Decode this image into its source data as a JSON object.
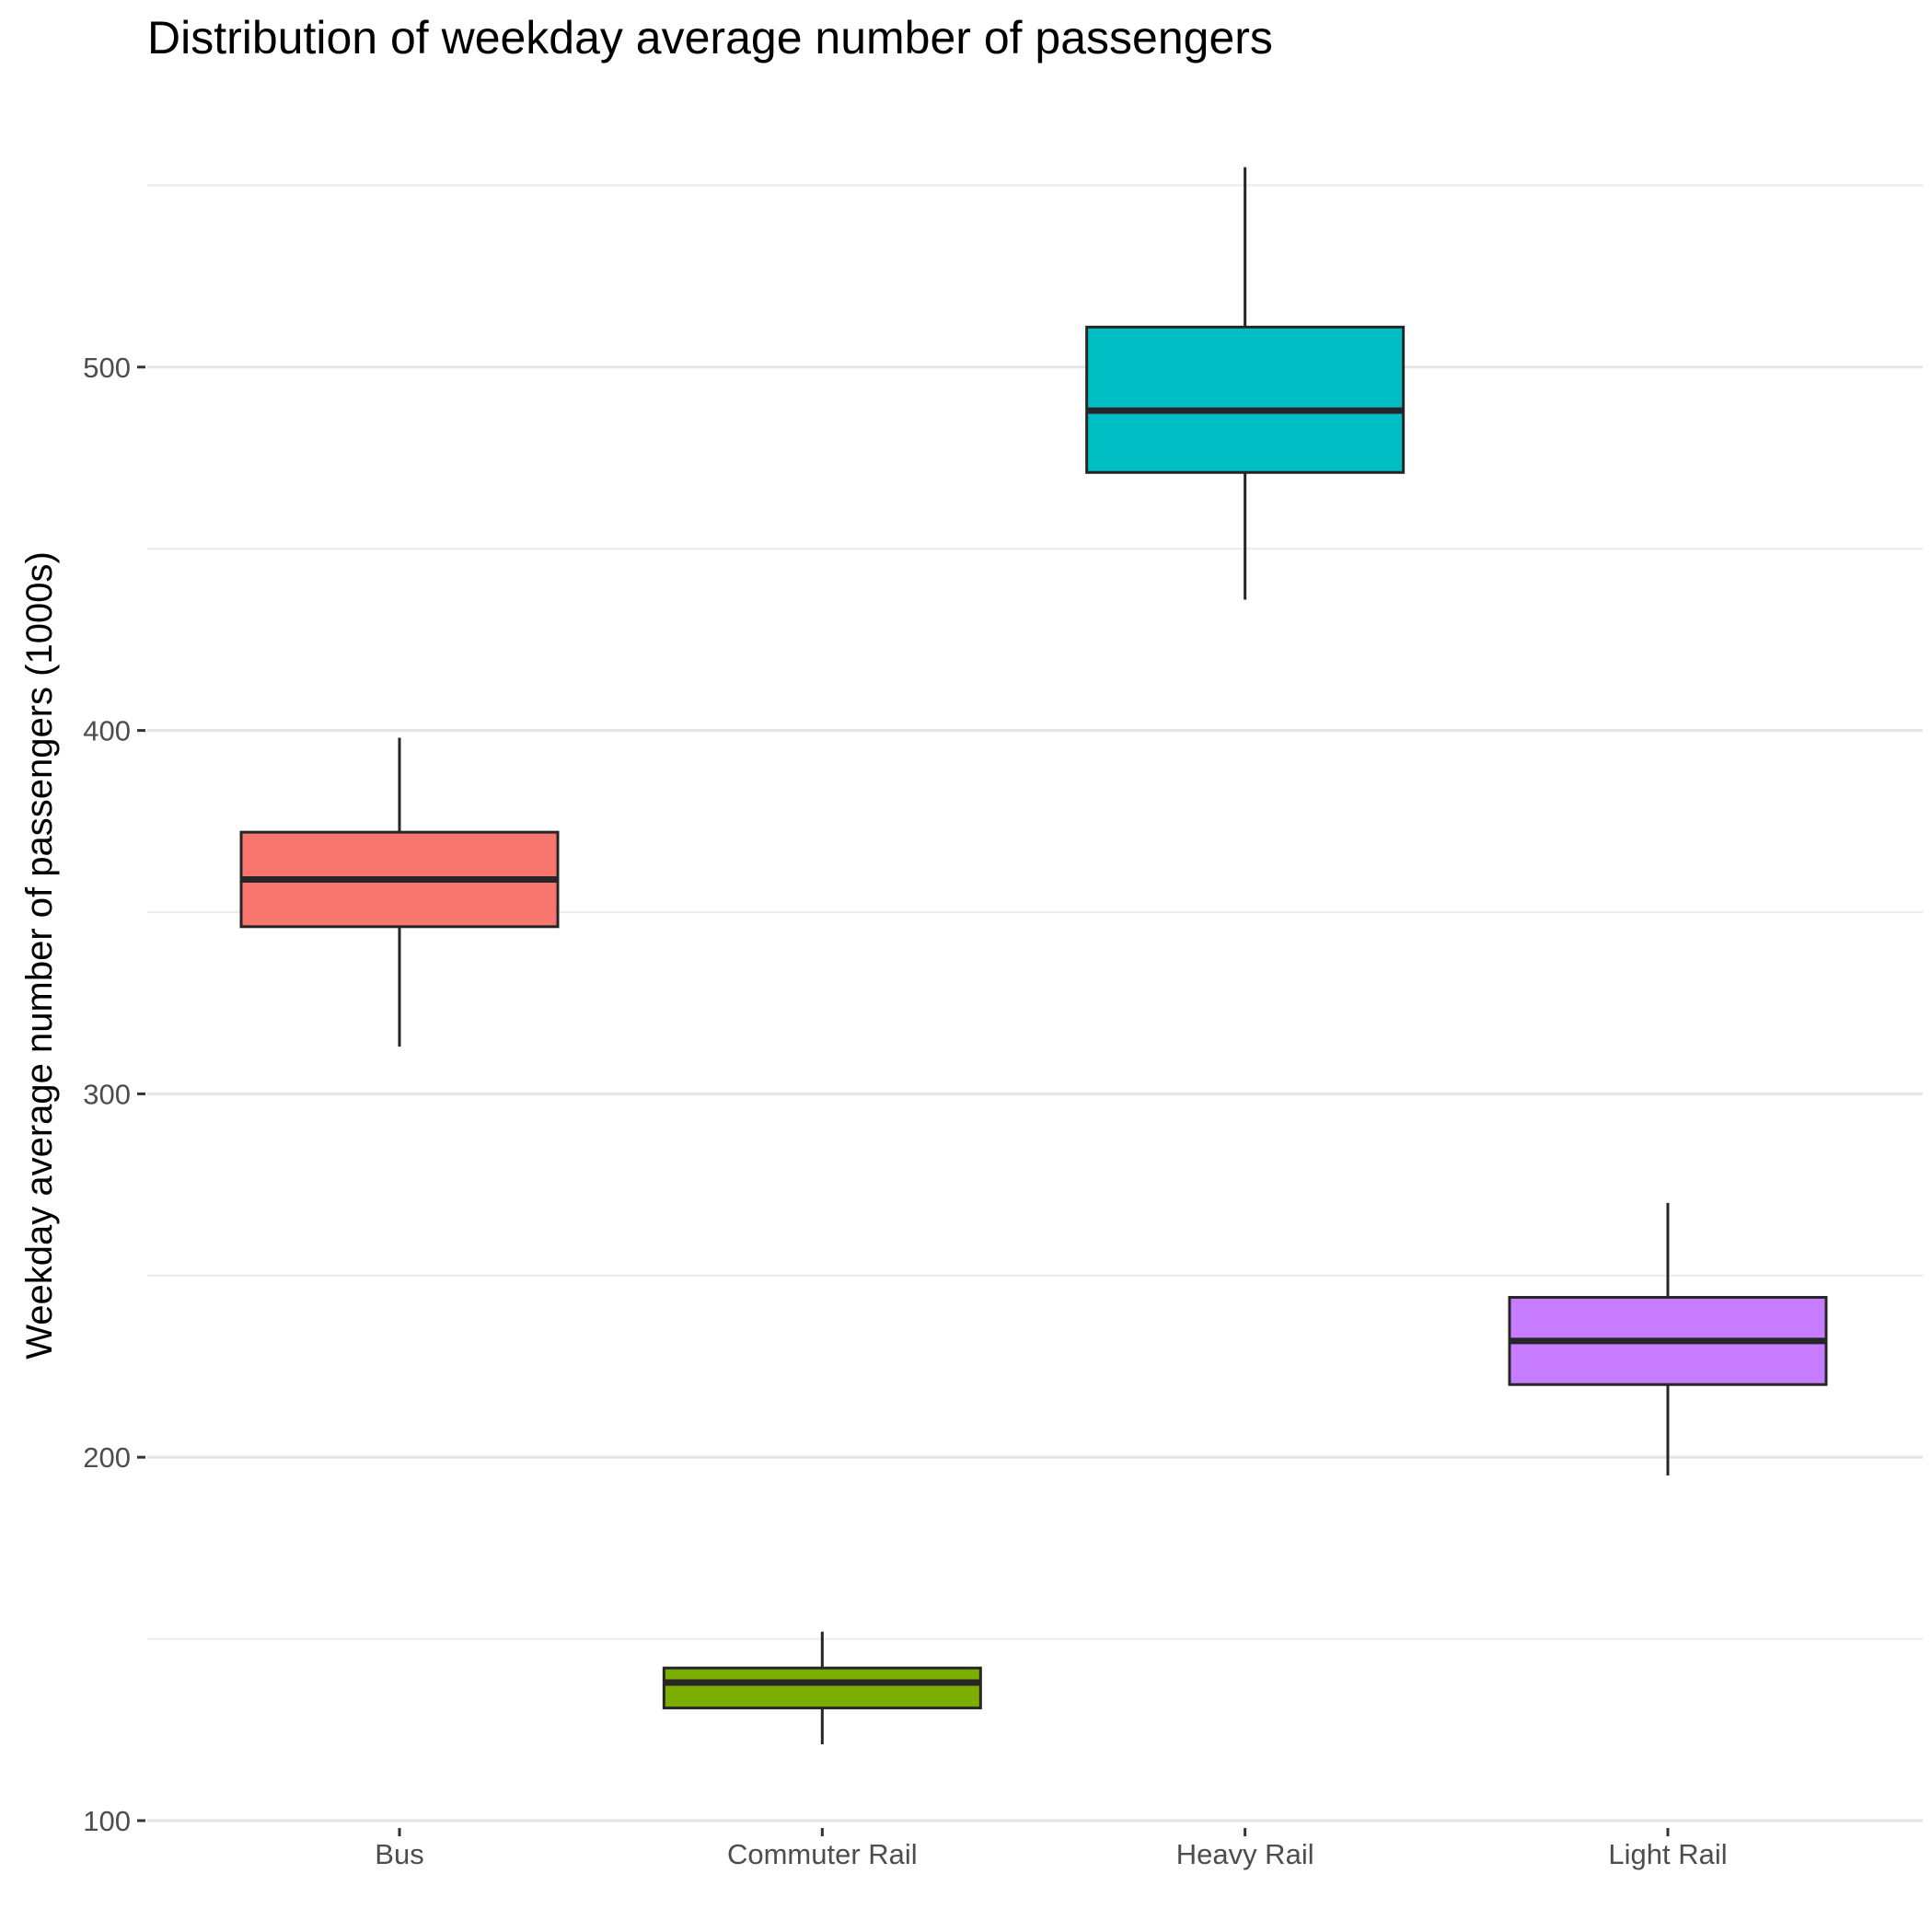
{
  "chart_data": {
    "type": "box",
    "title": "Distribution of weekday average number of passengers",
    "xlabel": "",
    "ylabel": "Weekday average number of passengers (1000s)",
    "ylim": [
      100,
      555
    ],
    "yticks": [
      100,
      200,
      300,
      400,
      500
    ],
    "grid": true,
    "legend": "none",
    "categories": [
      "Bus",
      "Commuter Rail",
      "Heavy Rail",
      "Light Rail"
    ],
    "boxes": [
      {
        "category": "Bus",
        "min": 313,
        "q1": 346,
        "median": 359,
        "q3": 372,
        "max": 398,
        "color": "#F8766D"
      },
      {
        "category": "Commuter Rail",
        "min": 121,
        "q1": 131,
        "median": 138,
        "q3": 142,
        "max": 152,
        "color": "#7CAE00"
      },
      {
        "category": "Heavy Rail",
        "min": 436,
        "q1": 471,
        "median": 488,
        "q3": 511,
        "max": 555,
        "color": "#00BFC4"
      },
      {
        "category": "Light Rail",
        "min": 195,
        "q1": 220,
        "median": 232,
        "q3": 244,
        "max": 270,
        "color": "#C77CFF"
      }
    ]
  }
}
